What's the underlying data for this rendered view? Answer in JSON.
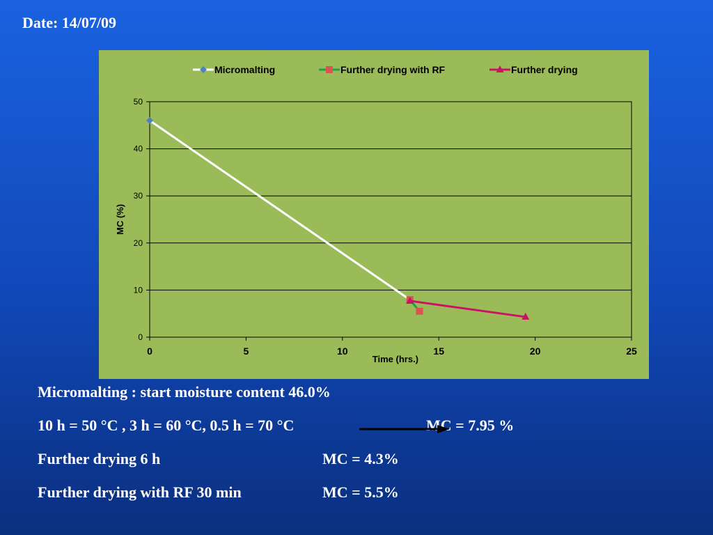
{
  "slide": {
    "date": "Date: 14/07/09",
    "notes": {
      "line1": "Micromalting : start moisture content  46.0%",
      "line2_left": "10 h = 50 °C , 3 h = 60 °C, 0.5 h = 70 °C",
      "line2_right": "MC = 7.95 %",
      "line3_left": "Further drying 6 h",
      "line3_right": "MC = 4.3%",
      "line4_left": "Further drying with RF 30 min",
      "line4_right": "MC = 5.5%"
    }
  },
  "chart_data": {
    "type": "line",
    "xlabel": "Time (hrs.)",
    "ylabel": "MC (%)",
    "xlim": [
      0,
      25
    ],
    "ylim": [
      0,
      50
    ],
    "xticks": [
      0,
      5,
      10,
      15,
      20,
      25
    ],
    "yticks": [
      0,
      10,
      20,
      30,
      40,
      50
    ],
    "grid": "horizontal",
    "legend_position": "top",
    "background": "#9bbb59",
    "series": [
      {
        "name": "Micromalting",
        "color": "#ffffff",
        "marker_color": "#4f81bd",
        "marker": "diamond",
        "points": [
          [
            0,
            46.0
          ],
          [
            13.5,
            7.95
          ]
        ]
      },
      {
        "name": "Further drying with RF",
        "color": "#1fa34a",
        "marker_color": "#d9534f",
        "marker": "square",
        "points": [
          [
            13.5,
            7.95
          ],
          [
            14.0,
            5.5
          ]
        ]
      },
      {
        "name": "Further drying",
        "color": "#cc1166",
        "marker_color": "#cc1166",
        "marker": "triangle",
        "points": [
          [
            13.5,
            7.7
          ],
          [
            19.5,
            4.3
          ]
        ]
      }
    ]
  }
}
